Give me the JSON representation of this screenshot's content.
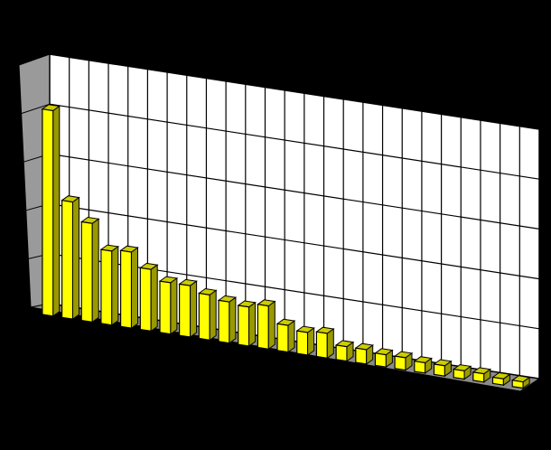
{
  "chart_data": {
    "type": "bar",
    "style": "3d",
    "values": [
      100,
      57,
      48,
      36,
      37,
      30,
      25,
      25,
      22,
      20,
      19,
      21,
      13,
      11,
      12,
      7,
      7,
      6,
      6,
      5,
      5,
      4,
      4,
      3,
      3
    ],
    "ylim": [
      0,
      110
    ],
    "grid": true,
    "legend": "none"
  },
  "colors": {
    "background": "#000000",
    "bar_front": "#ffff00",
    "bar_side": "#999900",
    "bar_top": "#cccc00",
    "wall": "#ffffff",
    "floor": "#8a8a8a",
    "side_wall": "#9a9a9a",
    "grid": "#000000"
  }
}
